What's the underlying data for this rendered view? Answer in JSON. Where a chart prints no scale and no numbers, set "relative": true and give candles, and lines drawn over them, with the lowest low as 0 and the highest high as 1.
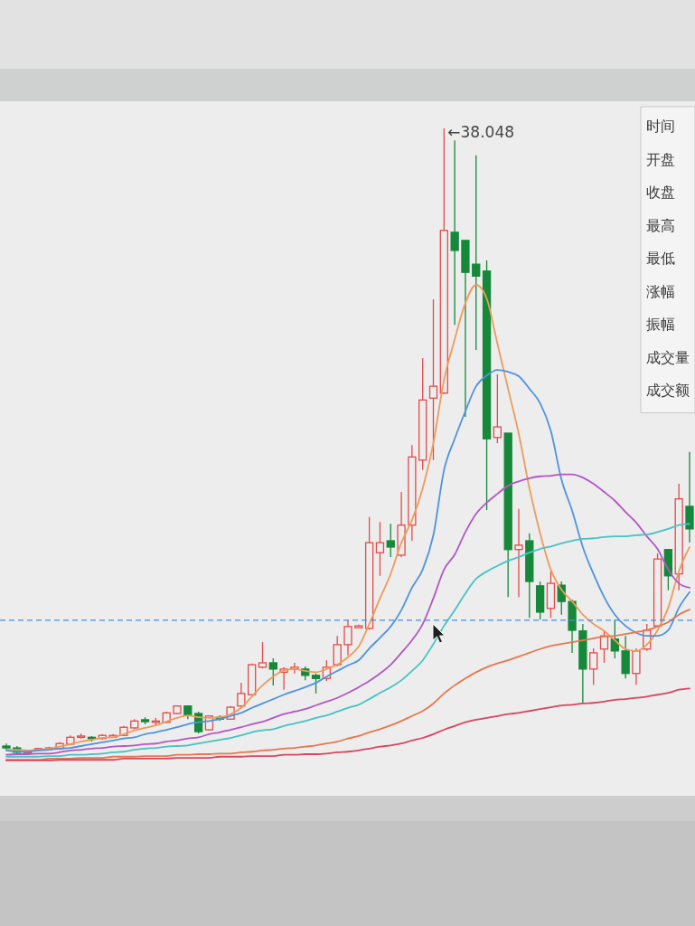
{
  "chart_data": {
    "type": "candlestick",
    "relative": true,
    "categories": [
      null,
      null,
      null,
      null,
      null,
      null,
      null,
      null,
      null,
      null,
      null,
      null,
      null,
      null,
      null,
      null,
      null,
      null,
      null,
      null,
      null,
      null,
      null,
      null,
      null,
      null,
      null,
      null,
      null,
      null,
      null,
      null,
      null,
      null,
      null,
      null,
      null,
      null,
      null,
      null,
      null,
      null,
      null,
      null,
      null,
      null,
      null,
      null,
      null,
      null,
      null,
      null,
      null,
      null,
      null,
      null,
      null,
      null,
      null,
      null,
      null,
      null,
      null,
      null,
      null
    ],
    "ohlc": [
      [
        0.013,
        0.017,
        0.007,
        0.01
      ],
      [
        0.01,
        0.013,
        0,
        0.003
      ],
      [
        0.003,
        0.006,
        0.001,
        0.004
      ],
      [
        0.007,
        0.01,
        0.006,
        0.009
      ],
      [
        0.009,
        0.012,
        0.007,
        0.01
      ],
      [
        0.009,
        0.019,
        0.007,
        0.017
      ],
      [
        0.016,
        0.03,
        0.014,
        0.027
      ],
      [
        0.027,
        0.033,
        0.025,
        0.029
      ],
      [
        0.027,
        0.029,
        0.02,
        0.025
      ],
      [
        0.025,
        0.032,
        0.023,
        0.03
      ],
      [
        0.027,
        0.032,
        0.026,
        0.03
      ],
      [
        0.03,
        0.045,
        0.029,
        0.043
      ],
      [
        0.042,
        0.056,
        0.04,
        0.053
      ],
      [
        0.055,
        0.059,
        0.048,
        0.052
      ],
      [
        0.051,
        0.058,
        0.046,
        0.053
      ],
      [
        0.051,
        0.068,
        0.049,
        0.066
      ],
      [
        0.065,
        0.078,
        0.064,
        0.077
      ],
      [
        0.077,
        0.078,
        0.056,
        0.062
      ],
      [
        0.065,
        0.068,
        0.033,
        0.036
      ],
      [
        0.039,
        0.062,
        0.038,
        0.061
      ],
      [
        0.059,
        0.062,
        0.053,
        0.056
      ],
      [
        0.056,
        0.077,
        0.055,
        0.075
      ],
      [
        0.077,
        0.114,
        0.075,
        0.097
      ],
      [
        0.095,
        0.145,
        0.094,
        0.143
      ],
      [
        0.139,
        0.179,
        0.137,
        0.146
      ],
      [
        0.146,
        0.153,
        0.11,
        0.136
      ],
      [
        0.131,
        0.139,
        0.103,
        0.136
      ],
      [
        0.136,
        0.146,
        0.129,
        0.139
      ],
      [
        0.136,
        0.14,
        0.118,
        0.126
      ],
      [
        0.126,
        0.129,
        0.097,
        0.121
      ],
      [
        0.121,
        0.15,
        0.117,
        0.139
      ],
      [
        0.143,
        0.189,
        0.14,
        0.175
      ],
      [
        0.175,
        0.215,
        0.158,
        0.204
      ],
      [
        0.202,
        0.207,
        0.201,
        0.205
      ],
      [
        0.201,
        0.379,
        0.199,
        0.338
      ],
      [
        0.322,
        0.371,
        0.285,
        0.338
      ],
      [
        0.341,
        0.368,
        0.315,
        0.331
      ],
      [
        0.318,
        0.419,
        0.315,
        0.366
      ],
      [
        0.366,
        0.494,
        0.341,
        0.475
      ],
      [
        0.47,
        0.633,
        0.454,
        0.566
      ],
      [
        0.569,
        0.727,
        0.47,
        0.588
      ],
      [
        0.577,
        1,
        0.575,
        0.837
      ],
      [
        0.834,
        0.981,
        0.686,
        0.805
      ],
      [
        0.821,
        0.821,
        0.539,
        0.77
      ],
      [
        0.783,
        0.957,
        0.646,
        0.764
      ],
      [
        0.772,
        0.789,
        0.39,
        0.504
      ],
      [
        0.506,
        0.607,
        0.497,
        0.523
      ],
      [
        0.513,
        0.513,
        0.251,
        0.327
      ],
      [
        0.327,
        0.392,
        0.251,
        0.334
      ],
      [
        0.341,
        0.353,
        0.218,
        0.276
      ],
      [
        0.269,
        0.276,
        0.215,
        0.227
      ],
      [
        0.233,
        0.292,
        0.218,
        0.273
      ],
      [
        0.27,
        0.276,
        0.223,
        0.244
      ],
      [
        0.244,
        0.247,
        0.162,
        0.198
      ],
      [
        0.197,
        0.208,
        0.082,
        0.136
      ],
      [
        0.136,
        0.169,
        0.111,
        0.162
      ],
      [
        0.168,
        0.197,
        0.146,
        0.189
      ],
      [
        0.184,
        0.215,
        0.153,
        0.165
      ],
      [
        0.165,
        0.189,
        0.121,
        0.129
      ],
      [
        0.129,
        0.169,
        0.111,
        0.165
      ],
      [
        0.168,
        0.208,
        0.165,
        0.198
      ],
      [
        0.205,
        0.321,
        0.205,
        0.312
      ],
      [
        0.327,
        0.328,
        0.262,
        0.285
      ],
      [
        0.288,
        0.432,
        0.262,
        0.408
      ],
      [
        0.396,
        0.483,
        0.338,
        0.36
      ]
    ],
    "colors": [
      "#15883a",
      "#15883a",
      "#e24b4b",
      "#e24b4b",
      "#e24b4b",
      "#e24b4b",
      "#e24b4b",
      "#e24b4b",
      "#15883a",
      "#e24b4b",
      "#e24b4b",
      "#e24b4b",
      "#e24b4b",
      "#15883a",
      "#e24b4b",
      "#e24b4b",
      "#e24b4b",
      "#15883a",
      "#15883a",
      "#e24b4b",
      "#15883a",
      "#e24b4b",
      "#e24b4b",
      "#e24b4b",
      "#e24b4b",
      "#15883a",
      "#e24b4b",
      "#e24b4b",
      "#15883a",
      "#15883a",
      "#e24b4b",
      "#e24b4b",
      "#e24b4b",
      "#e24b4b",
      "#e24b4b",
      "#e24b4b",
      "#15883a",
      "#e24b4b",
      "#e24b4b",
      "#e24b4b",
      "#e24b4b",
      "#e24b4b",
      "#15883a",
      "#15883a",
      "#15883a",
      "#15883a",
      "#e24b4b",
      "#15883a",
      "#e24b4b",
      "#15883a",
      "#15883a",
      "#e24b4b",
      "#15883a",
      "#15883a",
      "#15883a",
      "#e24b4b",
      "#e24b4b",
      "#15883a",
      "#15883a",
      "#e24b4b",
      "#e24b4b",
      "#e24b4b",
      "#15883a",
      "#e24b4b",
      "#15883a"
    ],
    "series": [
      {
        "type": "line",
        "color": "#ee9b5a",
        "values": [
          0.007,
          0.007,
          0.006,
          0.007,
          0.009,
          0.012,
          0.016,
          0.02,
          0.023,
          0.026,
          0.027,
          0.032,
          0.038,
          0.042,
          0.046,
          0.052,
          0.058,
          0.062,
          0.059,
          0.058,
          0.059,
          0.064,
          0.074,
          0.092,
          0.11,
          0.124,
          0.134,
          0.136,
          0.133,
          0.131,
          0.136,
          0.143,
          0.155,
          0.172,
          0.208,
          0.249,
          0.288,
          0.338,
          0.374,
          0.425,
          0.497,
          0.598,
          0.663,
          0.721,
          0.75,
          0.728,
          0.656,
          0.584,
          0.512,
          0.425,
          0.353,
          0.295,
          0.263,
          0.244,
          0.223,
          0.208,
          0.197,
          0.182,
          0.168,
          0.165,
          0.175,
          0.198,
          0.234,
          0.292,
          0.331
        ]
      },
      {
        "type": "line",
        "color": "#4f93de",
        "values": [
          0.006,
          0.004,
          0.004,
          0.006,
          0.007,
          0.009,
          0.01,
          0.013,
          0.016,
          0.019,
          0.022,
          0.025,
          0.027,
          0.032,
          0.035,
          0.039,
          0.043,
          0.048,
          0.051,
          0.053,
          0.056,
          0.061,
          0.066,
          0.074,
          0.081,
          0.088,
          0.095,
          0.101,
          0.107,
          0.114,
          0.124,
          0.133,
          0.142,
          0.15,
          0.169,
          0.186,
          0.204,
          0.23,
          0.266,
          0.295,
          0.35,
          0.454,
          0.504,
          0.548,
          0.588,
          0.605,
          0.614,
          0.611,
          0.604,
          0.584,
          0.561,
          0.517,
          0.439,
          0.389,
          0.331,
          0.288,
          0.251,
          0.223,
          0.205,
          0.194,
          0.189,
          0.189,
          0.198,
          0.234,
          0.259
        ]
      },
      {
        "type": "line",
        "color": "#b257c4",
        "values": [
          -0.001,
          0,
          0,
          0.001,
          0.001,
          0.003,
          0.006,
          0.007,
          0.009,
          0.01,
          0.012,
          0.013,
          0.014,
          0.016,
          0.017,
          0.02,
          0.022,
          0.025,
          0.027,
          0.032,
          0.035,
          0.039,
          0.043,
          0.048,
          0.052,
          0.058,
          0.064,
          0.068,
          0.072,
          0.078,
          0.084,
          0.09,
          0.098,
          0.107,
          0.117,
          0.129,
          0.143,
          0.162,
          0.182,
          0.208,
          0.249,
          0.295,
          0.319,
          0.355,
          0.384,
          0.402,
          0.416,
          0.429,
          0.436,
          0.441,
          0.444,
          0.445,
          0.447,
          0.447,
          0.442,
          0.432,
          0.419,
          0.405,
          0.387,
          0.37,
          0.348,
          0.328,
          0.295,
          0.273,
          0.266
        ]
      },
      {
        "type": "line",
        "color": "#48c2c6",
        "values": [
          -0.004,
          -0.004,
          -0.004,
          -0.004,
          -0.003,
          -0.003,
          -0.001,
          -0.001,
          0,
          0.001,
          0.003,
          0.004,
          0.007,
          0.009,
          0.01,
          0.012,
          0.013,
          0.014,
          0.017,
          0.02,
          0.023,
          0.026,
          0.03,
          0.035,
          0.038,
          0.04,
          0.045,
          0.049,
          0.053,
          0.058,
          0.062,
          0.068,
          0.074,
          0.079,
          0.088,
          0.098,
          0.107,
          0.118,
          0.133,
          0.15,
          0.176,
          0.205,
          0.23,
          0.257,
          0.28,
          0.292,
          0.301,
          0.309,
          0.315,
          0.322,
          0.328,
          0.332,
          0.337,
          0.341,
          0.344,
          0.345,
          0.347,
          0.348,
          0.348,
          0.35,
          0.351,
          0.355,
          0.36,
          0.366,
          0.368
        ]
      },
      {
        "type": "line",
        "color": "#e6784e",
        "values": [
          -0.009,
          -0.009,
          -0.009,
          -0.009,
          -0.007,
          -0.007,
          -0.007,
          -0.006,
          -0.006,
          -0.006,
          -0.004,
          -0.004,
          -0.004,
          -0.003,
          -0.003,
          -0.003,
          -0.001,
          -0.001,
          0,
          0,
          0.001,
          0.001,
          0.003,
          0.004,
          0.006,
          0.007,
          0.009,
          0.01,
          0.012,
          0.014,
          0.017,
          0.02,
          0.025,
          0.029,
          0.035,
          0.04,
          0.046,
          0.053,
          0.061,
          0.069,
          0.081,
          0.097,
          0.11,
          0.121,
          0.131,
          0.139,
          0.145,
          0.15,
          0.156,
          0.162,
          0.168,
          0.173,
          0.176,
          0.179,
          0.182,
          0.185,
          0.188,
          0.189,
          0.192,
          0.195,
          0.198,
          0.204,
          0.211,
          0.223,
          0.231
        ]
      },
      {
        "type": "line",
        "color": "#d8475f",
        "values": [
          -0.01,
          -0.01,
          -0.01,
          -0.01,
          -0.01,
          -0.009,
          -0.009,
          -0.009,
          -0.009,
          -0.009,
          -0.009,
          -0.007,
          -0.007,
          -0.007,
          -0.007,
          -0.007,
          -0.006,
          -0.006,
          -0.006,
          -0.006,
          -0.004,
          -0.004,
          -0.004,
          -0.003,
          -0.003,
          -0.003,
          -0.001,
          -0.001,
          0,
          0,
          0.001,
          0.003,
          0.004,
          0.006,
          0.009,
          0.012,
          0.014,
          0.017,
          0.022,
          0.026,
          0.032,
          0.039,
          0.045,
          0.051,
          0.055,
          0.058,
          0.061,
          0.064,
          0.066,
          0.069,
          0.072,
          0.075,
          0.078,
          0.079,
          0.081,
          0.082,
          0.084,
          0.087,
          0.088,
          0.09,
          0.092,
          0.095,
          0.098,
          0.103,
          0.105
        ]
      }
    ],
    "ref_lines": [
      {
        "axis": "y",
        "value": 0.214,
        "color": "#4a8fd8",
        "line_style": "dashed"
      }
    ],
    "annotations": [
      "←38.048",
      "时间",
      "开盘",
      "收盘",
      "最高",
      "最低",
      "涨幅",
      "振幅",
      "成交量",
      "成交额"
    ]
  }
}
